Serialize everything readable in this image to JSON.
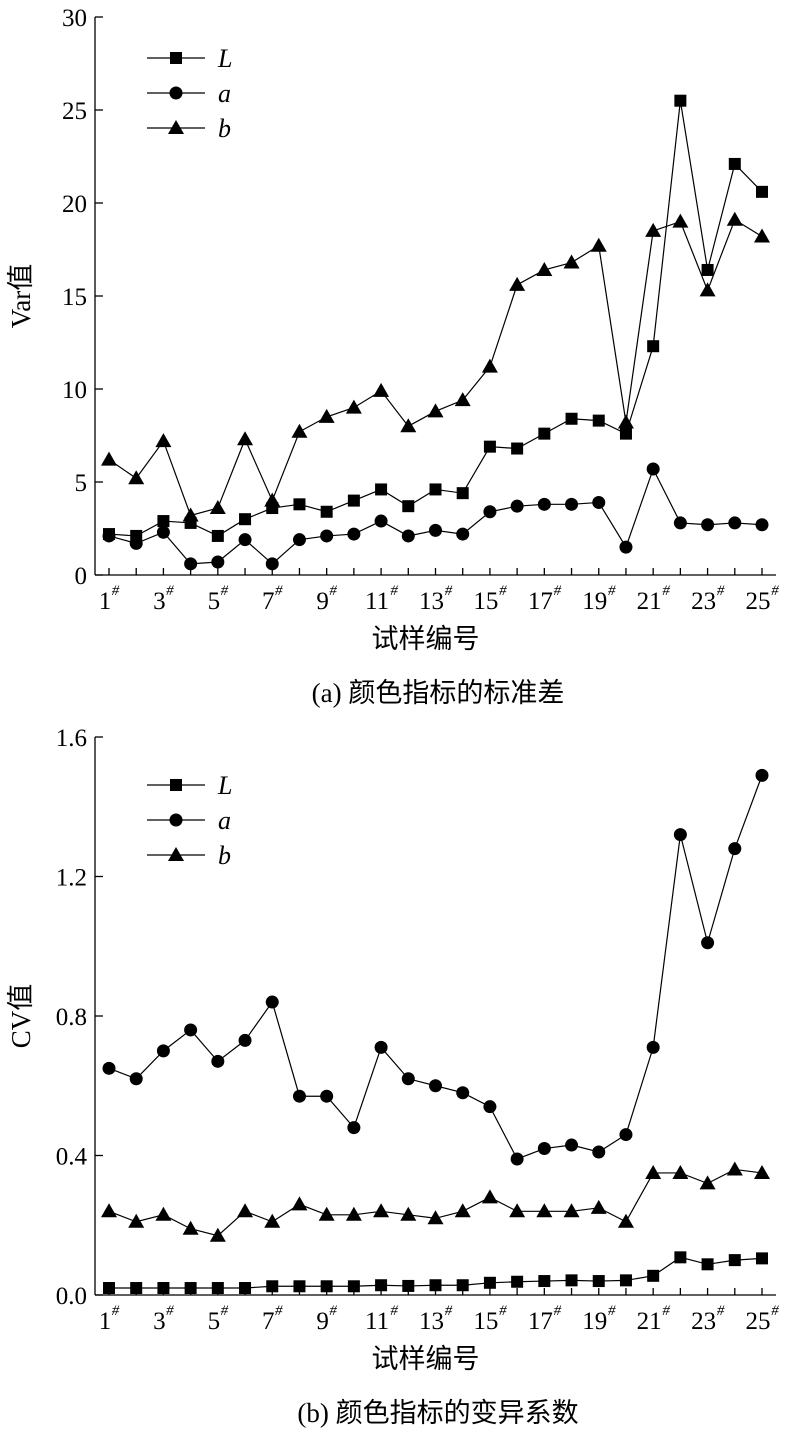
{
  "chart_data": [
    {
      "type": "line",
      "caption": "(a)  颜色指标的标准差",
      "xlabel": "试样编号",
      "ylabel": "Var值",
      "ylim": [
        0,
        30
      ],
      "yticks": [
        "0",
        "5",
        "10",
        "15",
        "20",
        "25",
        "30"
      ],
      "x": [
        1,
        2,
        3,
        4,
        5,
        6,
        7,
        8,
        9,
        10,
        11,
        12,
        13,
        14,
        15,
        16,
        17,
        18,
        19,
        20,
        21,
        22,
        23,
        24,
        25
      ],
      "xtick_labels": [
        "1",
        "3",
        "5",
        "7",
        "9",
        "11",
        "13",
        "15",
        "17",
        "19",
        "21",
        "23",
        "25"
      ],
      "xtick_suffix": "#",
      "legend_position": "top-left",
      "grid": false,
      "series": [
        {
          "name": "L",
          "marker": "square",
          "values": [
            2.2,
            2.1,
            2.9,
            2.8,
            2.1,
            3.0,
            3.6,
            3.8,
            3.4,
            4.0,
            4.6,
            3.7,
            4.6,
            4.4,
            6.9,
            6.8,
            7.6,
            8.4,
            8.3,
            7.6,
            12.3,
            25.5,
            16.4,
            22.1,
            20.6
          ]
        },
        {
          "name": "a",
          "marker": "circle",
          "values": [
            2.1,
            1.7,
            2.3,
            0.6,
            0.7,
            1.9,
            0.6,
            1.9,
            2.1,
            2.2,
            2.9,
            2.1,
            2.4,
            2.2,
            3.4,
            3.7,
            3.8,
            3.8,
            3.9,
            1.5,
            5.7,
            2.8,
            2.7,
            2.8,
            2.7
          ]
        },
        {
          "name": "b",
          "marker": "triangle",
          "values": [
            6.2,
            5.2,
            7.2,
            3.2,
            3.6,
            7.3,
            4.0,
            7.7,
            8.5,
            9.0,
            9.9,
            8.0,
            8.8,
            9.4,
            11.2,
            15.6,
            16.4,
            16.8,
            17.7,
            8.2,
            18.5,
            19.0,
            15.3,
            19.1,
            18.2
          ]
        }
      ]
    },
    {
      "type": "line",
      "caption": "(b)  颜色指标的变异系数",
      "xlabel": "试样编号",
      "ylabel": "CV值",
      "ylim": [
        0,
        1.6
      ],
      "yticks": [
        "0.0",
        "0.4",
        "0.8",
        "1.2",
        "1.6"
      ],
      "x": [
        1,
        2,
        3,
        4,
        5,
        6,
        7,
        8,
        9,
        10,
        11,
        12,
        13,
        14,
        15,
        16,
        17,
        18,
        19,
        20,
        21,
        22,
        23,
        24,
        25
      ],
      "xtick_labels": [
        "1",
        "3",
        "5",
        "7",
        "9",
        "11",
        "13",
        "15",
        "17",
        "19",
        "21",
        "23",
        "25"
      ],
      "xtick_suffix": "#",
      "legend_position": "top-left",
      "grid": false,
      "series": [
        {
          "name": "L",
          "marker": "square",
          "values": [
            0.02,
            0.02,
            0.02,
            0.02,
            0.02,
            0.02,
            0.025,
            0.025,
            0.025,
            0.025,
            0.028,
            0.026,
            0.028,
            0.028,
            0.035,
            0.038,
            0.04,
            0.042,
            0.04,
            0.042,
            0.055,
            0.108,
            0.088,
            0.1,
            0.105
          ]
        },
        {
          "name": "a",
          "marker": "circle",
          "values": [
            0.65,
            0.62,
            0.7,
            0.76,
            0.67,
            0.73,
            0.84,
            0.57,
            0.57,
            0.48,
            0.71,
            0.62,
            0.6,
            0.58,
            0.54,
            0.39,
            0.42,
            0.43,
            0.41,
            0.46,
            0.71,
            1.32,
            1.01,
            1.28,
            1.49
          ]
        },
        {
          "name": "b",
          "marker": "triangle",
          "values": [
            0.24,
            0.21,
            0.23,
            0.19,
            0.17,
            0.24,
            0.21,
            0.26,
            0.23,
            0.23,
            0.24,
            0.23,
            0.22,
            0.24,
            0.28,
            0.24,
            0.24,
            0.24,
            0.25,
            0.21,
            0.35,
            0.35,
            0.32,
            0.36,
            0.35
          ]
        }
      ]
    }
  ]
}
